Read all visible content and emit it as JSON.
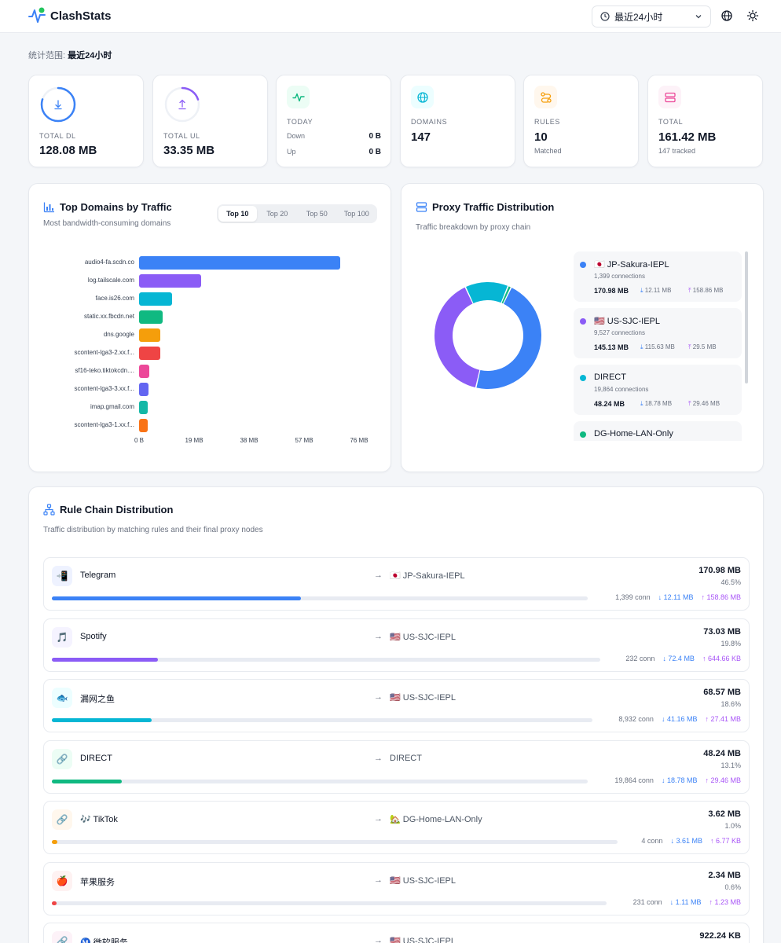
{
  "app": {
    "title": "ClashStats"
  },
  "header": {
    "range_selected": "最近24小时"
  },
  "scope": {
    "label": "统计范围:",
    "value": "最近24小时"
  },
  "stats": {
    "total_dl": {
      "label": "TOTAL DL",
      "value": "128.08 MB",
      "ring_fraction": 0.8,
      "color": "#3b82f6"
    },
    "total_ul": {
      "label": "TOTAL UL",
      "value": "33.35 MB",
      "ring_fraction": 0.2,
      "color": "#8b5cf6"
    },
    "today": {
      "label": "TODAY",
      "down_label": "Down",
      "down_value": "0 B",
      "up_label": "Up",
      "up_value": "0 B"
    },
    "domains": {
      "label": "DOMAINS",
      "value": "147"
    },
    "rules": {
      "label": "RULES",
      "value": "10",
      "sub": "Matched"
    },
    "total": {
      "label": "TOTAL",
      "value": "161.42 MB",
      "sub": "147 tracked"
    }
  },
  "top_domains": {
    "title": "Top Domains by Traffic",
    "subtitle": "Most bandwidth-consuming domains",
    "tabs": [
      "Top 10",
      "Top 20",
      "Top 50",
      "Top 100"
    ],
    "active_tab": 0
  },
  "chart_data": {
    "type": "bar",
    "orientation": "horizontal",
    "title": "Top Domains by Traffic",
    "categories": [
      "audio4-fa.scdn.co",
      "log.tailscale.com",
      "face.is26.com",
      "static.xx.fbcdn.net",
      "dns.google",
      "scontent-lga3-2.xx.f...",
      "sf16-teko.tiktokcdn....",
      "scontent-lga3-3.xx.f...",
      "imap.gmail.com",
      "scontent-lga3-1.xx.f..."
    ],
    "values": [
      69.5,
      21.5,
      11.5,
      8.1,
      7.2,
      7.2,
      3.6,
      3.2,
      3.1,
      3.1
    ],
    "value_unit": "MB",
    "colors": [
      "#3b82f6",
      "#8b5cf6",
      "#06b6d4",
      "#10b981",
      "#f59e0b",
      "#ef4444",
      "#ec4899",
      "#6366f1",
      "#14b8a6",
      "#f97316"
    ],
    "xlim": [
      0,
      76
    ],
    "xticks": [
      {
        "value": 0,
        "label": "0 B"
      },
      {
        "value": 19,
        "label": "19 MB"
      },
      {
        "value": 38,
        "label": "38 MB"
      },
      {
        "value": 57,
        "label": "57 MB"
      },
      {
        "value": 76,
        "label": "76 MB"
      }
    ],
    "grid": false,
    "legend": "none"
  },
  "proxy_dist": {
    "title": "Proxy Traffic Distribution",
    "subtitle": "Traffic breakdown by proxy chain",
    "donut": [
      {
        "name": "JP-Sakura-IEPL",
        "value": 170.98,
        "color": "#3b82f6"
      },
      {
        "name": "US-SJC-IEPL",
        "value": 145.13,
        "color": "#8b5cf6"
      },
      {
        "name": "DIRECT",
        "value": 48.24,
        "color": "#06b6d4"
      },
      {
        "name": "DG-Home-LAN-Only",
        "value": 3.62,
        "color": "#10b981"
      }
    ],
    "items": [
      {
        "flag": "🇯🇵",
        "name": "JP-Sakura-IEPL",
        "connections": "1,399 connections",
        "total": "170.98 MB",
        "down": "12.11 MB",
        "up": "158.86 MB",
        "color": "#3b82f6"
      },
      {
        "flag": "🇺🇸",
        "name": "US-SJC-IEPL",
        "connections": "9,527 connections",
        "total": "145.13 MB",
        "down": "115.63 MB",
        "up": "29.5 MB",
        "color": "#8b5cf6"
      },
      {
        "flag": "",
        "name": "DIRECT",
        "connections": "19,864 connections",
        "total": "48.24 MB",
        "down": "18.78 MB",
        "up": "29.46 MB",
        "color": "#06b6d4"
      },
      {
        "flag": "",
        "name": "DG-Home-LAN-Only",
        "connections": "",
        "total": "",
        "down": "",
        "up": "",
        "color": "#10b981"
      }
    ]
  },
  "rule_chain": {
    "title": "Rule Chain Distribution",
    "subtitle": "Traffic distribution by matching rules and their final proxy nodes",
    "rows": [
      {
        "icon": "📲",
        "icon_bg": "#eef2ff",
        "name": "Telegram",
        "target": "🇯🇵 JP-Sakura-IEPL",
        "total": "170.98 MB",
        "pct": "46.5%",
        "fraction": 0.465,
        "conn": "1,399 conn",
        "down": "↓ 12.11 MB",
        "up": "↑ 158.86 MB",
        "color": "#3b82f6"
      },
      {
        "icon": "🎵",
        "icon_bg": "#f5f3ff",
        "name": "Spotify",
        "target": "🇺🇸 US-SJC-IEPL",
        "total": "73.03 MB",
        "pct": "19.8%",
        "fraction": 0.198,
        "conn": "232 conn",
        "down": "↓ 72.4 MB",
        "up": "↑ 644.66 KB",
        "color": "#8b5cf6"
      },
      {
        "icon": "🐟",
        "icon_bg": "#ecfeff",
        "name": "漏网之鱼",
        "target": "🇺🇸 US-SJC-IEPL",
        "total": "68.57 MB",
        "pct": "18.6%",
        "fraction": 0.186,
        "conn": "8,932 conn",
        "down": "↓ 41.16 MB",
        "up": "↑ 27.41 MB",
        "color": "#06b6d4"
      },
      {
        "icon": "🔗",
        "icon_bg": "#ecfdf5",
        "name": "DIRECT",
        "target": "DIRECT",
        "total": "48.24 MB",
        "pct": "13.1%",
        "fraction": 0.131,
        "conn": "19,864 conn",
        "down": "↓ 18.78 MB",
        "up": "↑ 29.46 MB",
        "color": "#10b981"
      },
      {
        "icon": "🔗",
        "icon_bg": "#fff7ed",
        "name": "🎶 TikTok",
        "target": "🏡 DG-Home-LAN-Only",
        "total": "3.62 MB",
        "pct": "1.0%",
        "fraction": 0.01,
        "conn": "4 conn",
        "down": "↓ 3.61 MB",
        "up": "↑ 6.77 KB",
        "color": "#f59e0b"
      },
      {
        "icon": "🍎",
        "icon_bg": "#fef2f2",
        "name": "苹果服务",
        "target": "🇺🇸 US-SJC-IEPL",
        "total": "2.34 MB",
        "pct": "0.6%",
        "fraction": 0.006,
        "conn": "231 conn",
        "down": "↓ 1.11 MB",
        "up": "↑ 1.23 MB",
        "color": "#ef4444"
      },
      {
        "icon": "🔗",
        "icon_bg": "#fdf2f8",
        "name": "Ⓜ️ 微软服务",
        "target": "🇺🇸 US-SJC-IEPL",
        "total": "922.24 KB",
        "pct": "",
        "fraction": 0.004,
        "conn": "",
        "down": "",
        "up": "",
        "color": "#ec4899"
      }
    ]
  }
}
